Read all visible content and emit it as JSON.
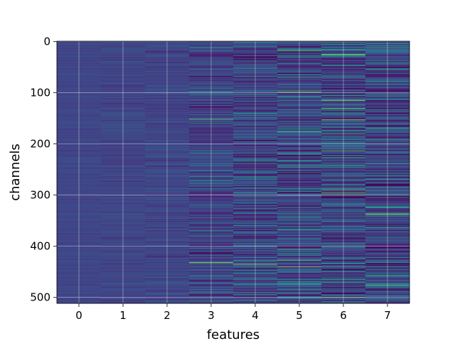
{
  "chart_data": {
    "type": "heatmap",
    "title": "",
    "xlabel": "features",
    "ylabel": "channels",
    "columns": [
      0,
      1,
      2,
      3,
      4,
      5,
      6,
      7
    ],
    "rows": 512,
    "x_ticks": [
      0,
      1,
      2,
      3,
      4,
      5,
      6,
      7
    ],
    "y_ticks": [
      0,
      100,
      200,
      300,
      400,
      500
    ],
    "xlim": [
      -0.5,
      7.5
    ],
    "ylim": [
      511.5,
      -0.5
    ],
    "y_inverted": true,
    "grid": true,
    "colormap": "viridis",
    "column_variability": [
      0.1,
      0.16,
      0.24,
      0.48,
      0.58,
      0.66,
      0.7,
      0.64
    ],
    "highlights": [
      {
        "column": 3,
        "row": 152,
        "value": 0.8
      },
      {
        "column": 3,
        "row": 432,
        "value": 0.9
      },
      {
        "column": 4,
        "row": 435,
        "value": 0.85
      },
      {
        "column": 4,
        "row": 490,
        "value": 0.65
      },
      {
        "column": 5,
        "row": 18,
        "value": 0.75
      },
      {
        "column": 5,
        "row": 70,
        "value": 0.65
      },
      {
        "column": 5,
        "row": 98,
        "value": 0.8
      },
      {
        "column": 5,
        "row": 176,
        "value": 0.7
      },
      {
        "column": 5,
        "row": 440,
        "value": 0.85
      },
      {
        "column": 6,
        "row": 25,
        "value": 0.85
      },
      {
        "column": 6,
        "row": 115,
        "value": 0.9
      },
      {
        "column": 6,
        "row": 153,
        "value": 0.85
      },
      {
        "column": 6,
        "row": 180,
        "value": 0.7
      },
      {
        "column": 6,
        "row": 295,
        "value": 0.8
      },
      {
        "column": 6,
        "row": 368,
        "value": 0.6
      },
      {
        "column": 6,
        "row": 500,
        "value": 0.8
      },
      {
        "column": 7,
        "row": 78,
        "value": 0.6
      },
      {
        "column": 7,
        "row": 337,
        "value": 0.9
      },
      {
        "column": 7,
        "row": 476,
        "value": 0.75
      }
    ]
  }
}
